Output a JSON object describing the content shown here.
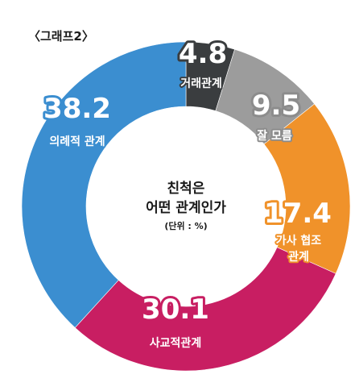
{
  "chart_data": {
    "type": "pie",
    "tag": "〈그래프2〉",
    "center_title_line1": "친척은",
    "center_title_line2": "어떤 관계인가",
    "center_unit": "(단위 : %)",
    "slices": [
      {
        "label": "거래관계",
        "value": 4.8,
        "value_label": "4.8",
        "color": "#3a3d3f"
      },
      {
        "label": "잘 모름",
        "value": 9.5,
        "value_label": "9.5",
        "color": "#9c9c9c"
      },
      {
        "label": "가사 협조 관계",
        "label_lines": [
          "가사 협조",
          "관계"
        ],
        "value": 17.4,
        "value_label": "17.4",
        "color": "#f0922a"
      },
      {
        "label": "사교적관계",
        "value": 30.1,
        "value_label": "30.1",
        "color": "#c81e62"
      },
      {
        "label": "의례적 관계",
        "value": 38.2,
        "value_label": "38.2",
        "color": "#3b8ed0"
      }
    ]
  }
}
